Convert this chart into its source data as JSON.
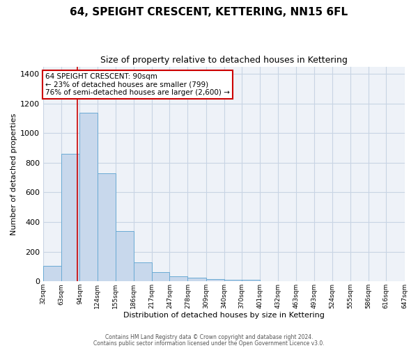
{
  "title": "64, SPEIGHT CRESCENT, KETTERING, NN15 6FL",
  "subtitle": "Size of property relative to detached houses in Kettering",
  "xlabel": "Distribution of detached houses by size in Kettering",
  "ylabel": "Number of detached properties",
  "bar_color": "#c8d8ec",
  "bar_edge_color": "#6aaad4",
  "background_color": "#eef2f8",
  "grid_color": "#c8d4e4",
  "vline_value": 90,
  "vline_color": "#cc0000",
  "bin_edges": [
    32,
    63,
    94,
    124,
    155,
    186,
    217,
    247,
    278,
    309,
    340,
    370,
    401,
    432,
    463,
    493,
    524,
    555,
    586,
    616,
    647
  ],
  "bin_labels": [
    "32sqm",
    "63sqm",
    "94sqm",
    "124sqm",
    "155sqm",
    "186sqm",
    "217sqm",
    "247sqm",
    "278sqm",
    "309sqm",
    "340sqm",
    "370sqm",
    "401sqm",
    "432sqm",
    "463sqm",
    "493sqm",
    "524sqm",
    "555sqm",
    "586sqm",
    "616sqm",
    "647sqm"
  ],
  "bar_heights": [
    105,
    860,
    1140,
    730,
    340,
    130,
    62,
    35,
    22,
    15,
    10,
    8,
    0,
    0,
    0,
    0,
    0,
    0,
    0,
    0
  ],
  "ylim": [
    0,
    1450
  ],
  "yticks": [
    0,
    200,
    400,
    600,
    800,
    1000,
    1200,
    1400
  ],
  "annotation_line1": "64 SPEIGHT CRESCENT: 90sqm",
  "annotation_line2": "← 23% of detached houses are smaller (799)",
  "annotation_line3": "76% of semi-detached houses are larger (2,600) →",
  "annotation_box_color": "#ffffff",
  "annotation_border_color": "#cc0000",
  "footer1": "Contains HM Land Registry data © Crown copyright and database right 2024.",
  "footer2": "Contains public sector information licensed under the Open Government Licence v3.0."
}
